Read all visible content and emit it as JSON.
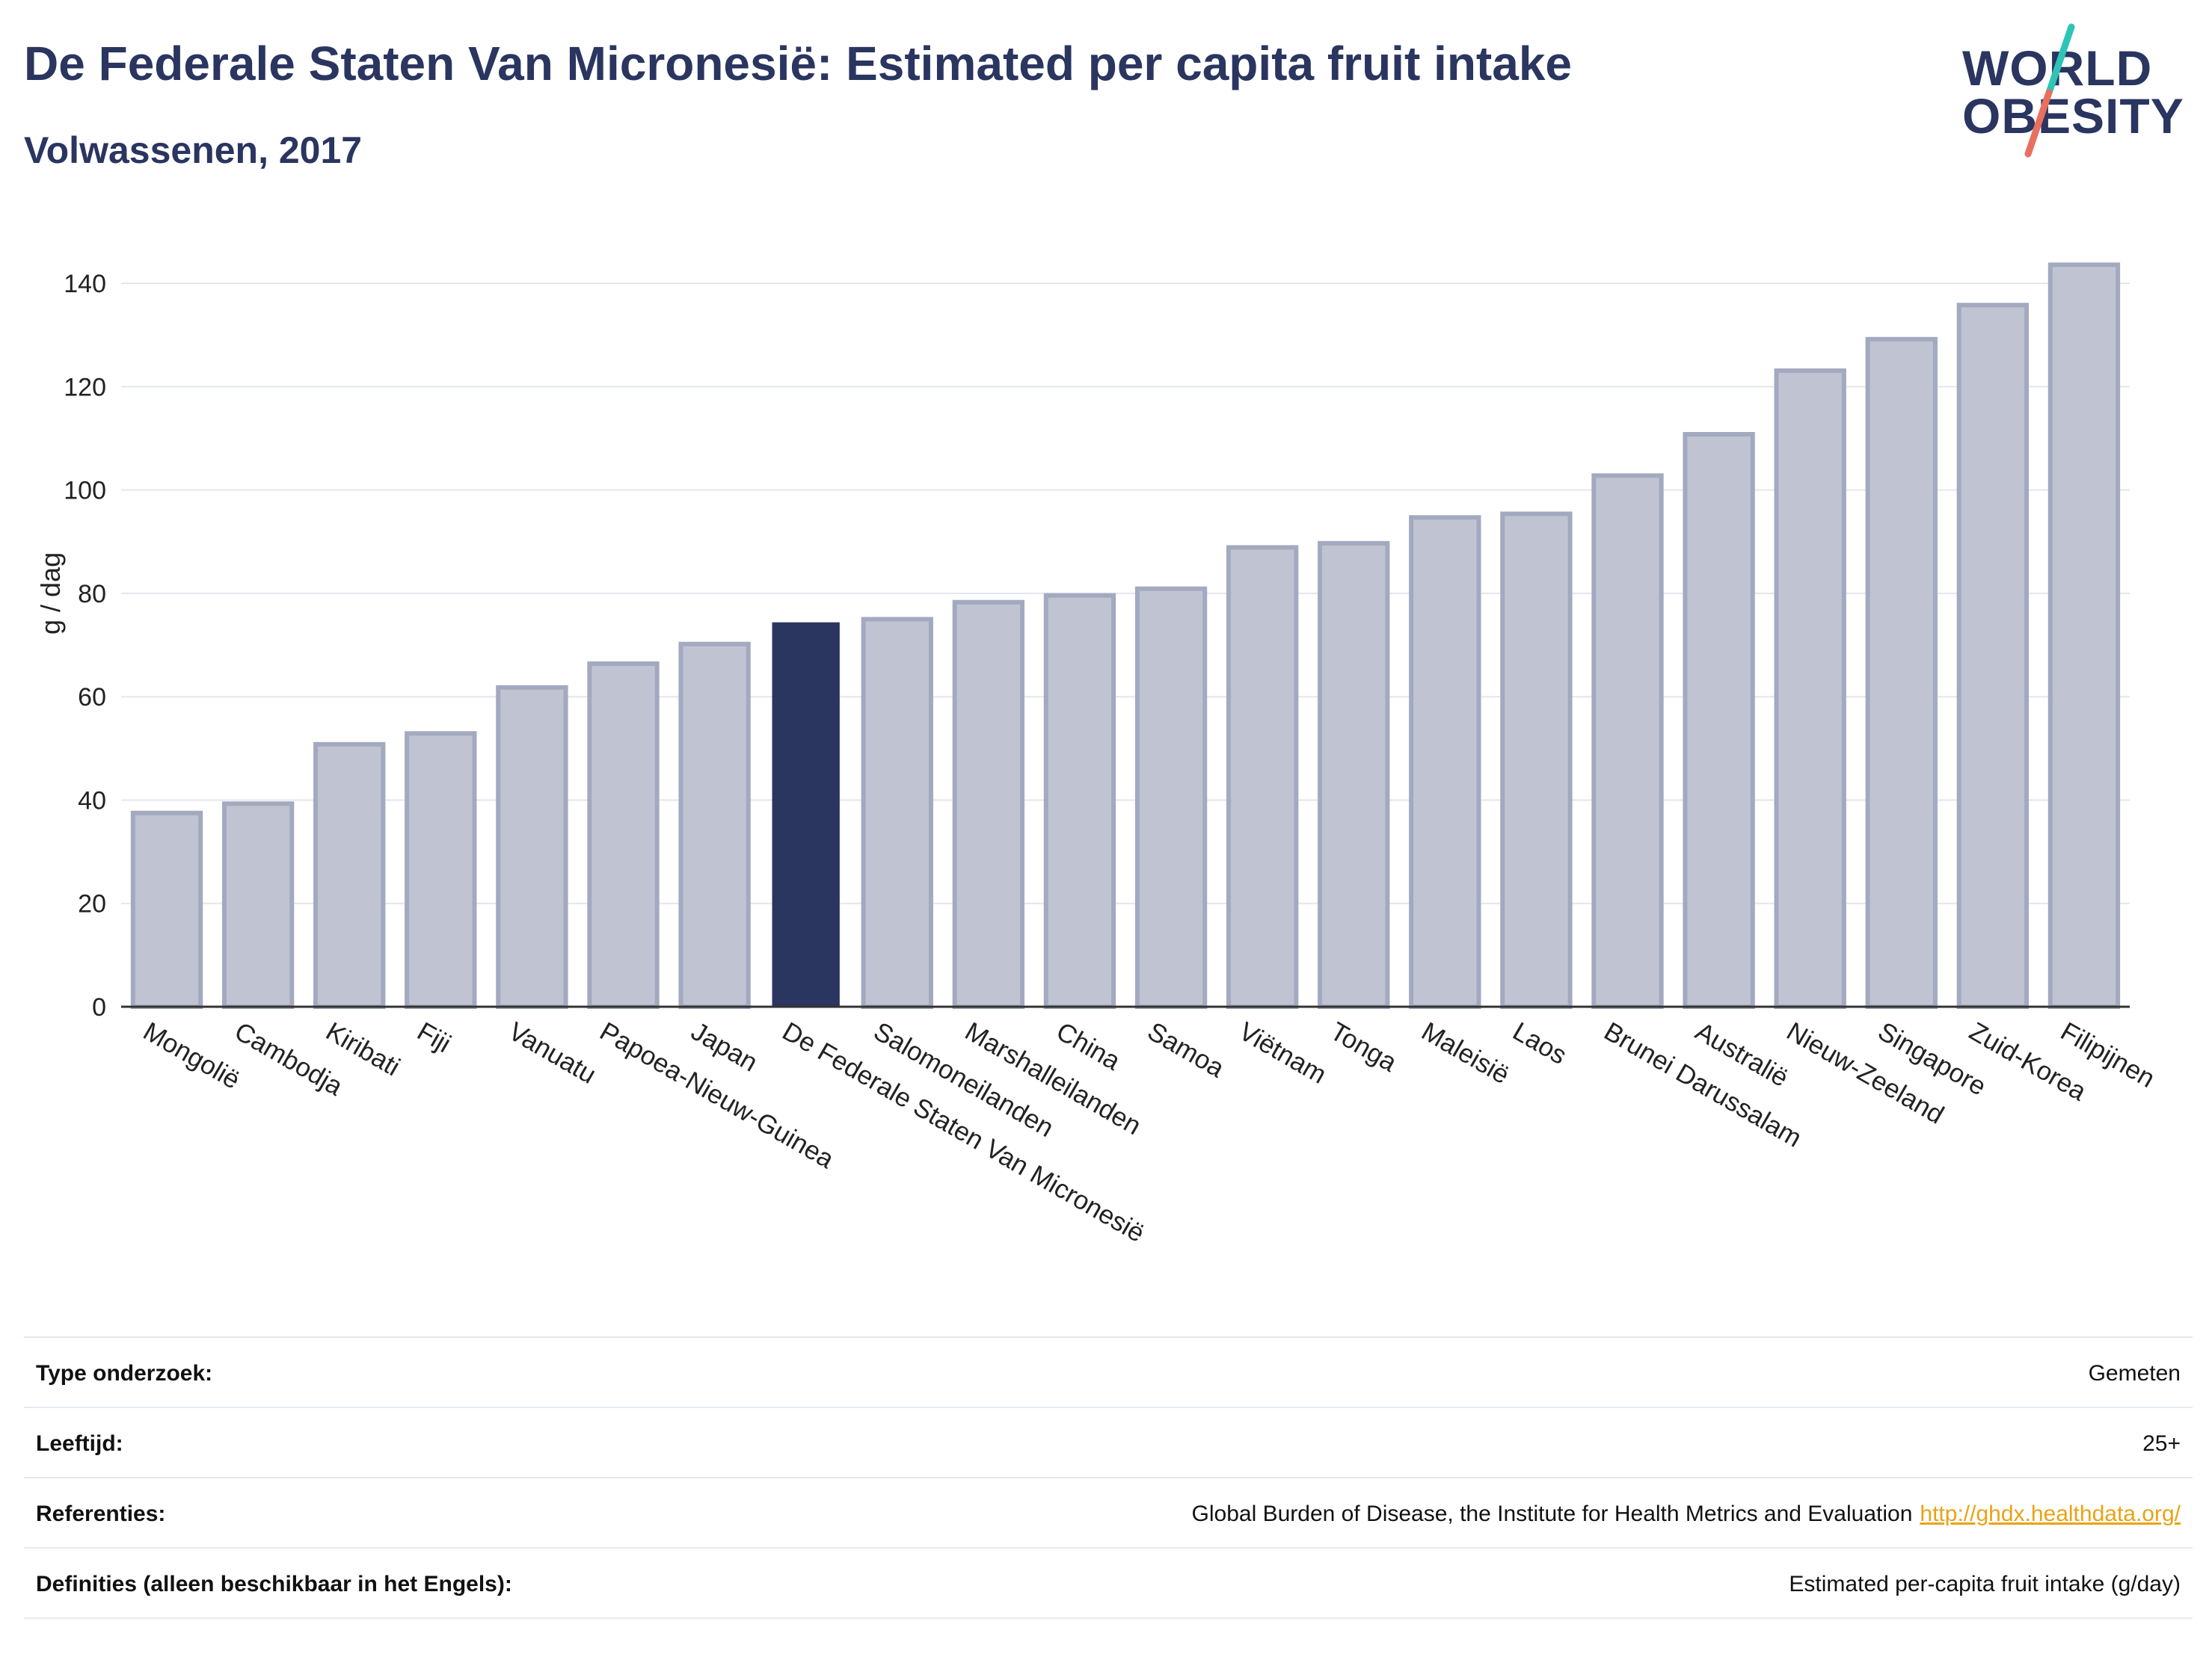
{
  "header": {
    "title": "De Federale Staten Van Micronesië: Estimated per capita fruit intake",
    "subtitle": "Volwassenen, 2017"
  },
  "logo": {
    "line1": "WORLD",
    "line2": "OBESITY",
    "slash_colors": [
      "#2ec4b6",
      "#e8705f"
    ]
  },
  "chart_data": {
    "type": "bar",
    "title": "De Federale Staten Van Micronesië: Estimated per capita fruit intake",
    "subtitle": "Volwassenen, 2017",
    "xlabel": "",
    "ylabel": "g / dag",
    "ylim": [
      0,
      150
    ],
    "yticks": [
      0,
      20,
      40,
      60,
      80,
      100,
      120,
      140
    ],
    "grid": true,
    "categories": [
      "Mongolië",
      "Cambodja",
      "Kiribati",
      "Fiji",
      "Vanuatu",
      "Papoea-Nieuw-Guinea",
      "Japan",
      "De Federale Staten Van Micronesië",
      "Salomoneilanden",
      "Marshalleilanden",
      "China",
      "Samoa",
      "Viëtnam",
      "Tonga",
      "Maleisië",
      "Laos",
      "Brunei Darussalam",
      "Australië",
      "Nieuw-Zeeland",
      "Singapore",
      "Zuid-Korea",
      "Filipijnen"
    ],
    "values": [
      37.5,
      39.3,
      50.8,
      52.9,
      61.8,
      66.4,
      70.2,
      74.4,
      75.0,
      78.3,
      79.6,
      80.9,
      88.9,
      89.7,
      94.7,
      95.4,
      102.8,
      110.8,
      123.1,
      129.2,
      135.8,
      143.6
    ],
    "highlight": "De Federale Staten Van Micronesië",
    "colors": {
      "bar": "#c0c4d2",
      "bar_border": "#a3a9bf",
      "highlight": "#2a3560"
    }
  },
  "info": {
    "rows": [
      {
        "label": "Type onderzoek:",
        "value": "Gemeten"
      },
      {
        "label": "Leeftijd:",
        "value": "25+"
      },
      {
        "label": "Referenties:",
        "value": "Global Burden of Disease, the Institute for Health Metrics and Evaluation",
        "link": "http://ghdx.healthdata.org/"
      },
      {
        "label": "Definities (alleen beschikbaar in het Engels):",
        "value": "Estimated per-capita fruit intake (g/day)"
      }
    ]
  }
}
